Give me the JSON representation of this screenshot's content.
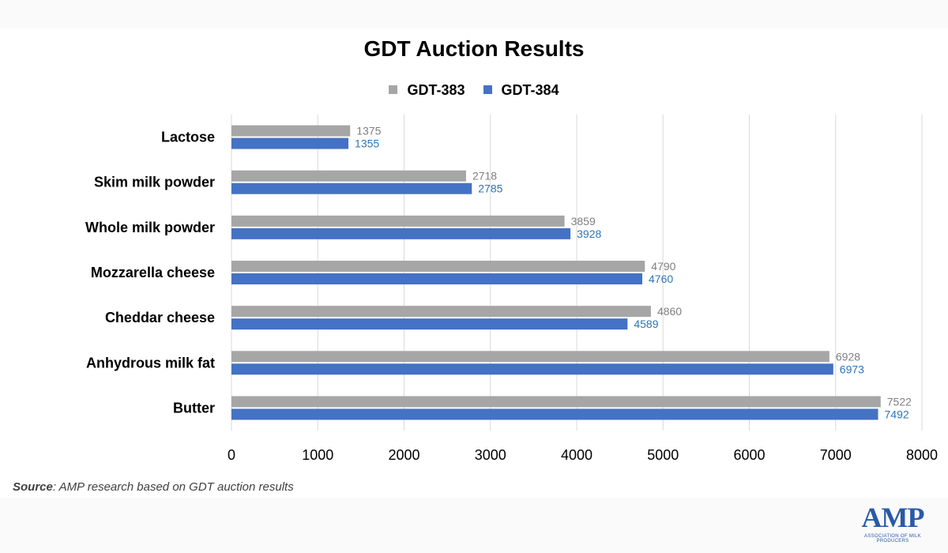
{
  "chart_data": {
    "type": "bar",
    "orientation": "horizontal",
    "title": "GDT Auction Results",
    "categories": [
      "Lactose",
      "Skim milk powder",
      "Whole milk powder",
      "Mozzarella cheese",
      "Cheddar cheese",
      "Anhydrous milk fat",
      "Butter"
    ],
    "series": [
      {
        "name": "GDT-383",
        "color": "#a6a6a6",
        "label_color": "#7f7f7f",
        "values": [
          1375,
          2718,
          3859,
          4790,
          4860,
          6928,
          7522
        ]
      },
      {
        "name": "GDT-384",
        "color": "#4472c4",
        "label_color": "#2e75b6",
        "values": [
          1355,
          2785,
          3928,
          4760,
          4589,
          6973,
          7492
        ]
      }
    ],
    "xlim": [
      0,
      8000
    ],
    "x_ticks": [
      "0",
      "1000",
      "2000",
      "3000",
      "4000",
      "5000",
      "6000",
      "7000",
      "8000"
    ],
    "grid": "vertical",
    "legend_position": "top",
    "data_labels": true
  },
  "source": {
    "label": "Source",
    "text": ": AMP research based on GDT auction results"
  },
  "logo": {
    "text": "AMP",
    "subtitle": "ASSOCIATION OF MILK PRODUCERS"
  }
}
